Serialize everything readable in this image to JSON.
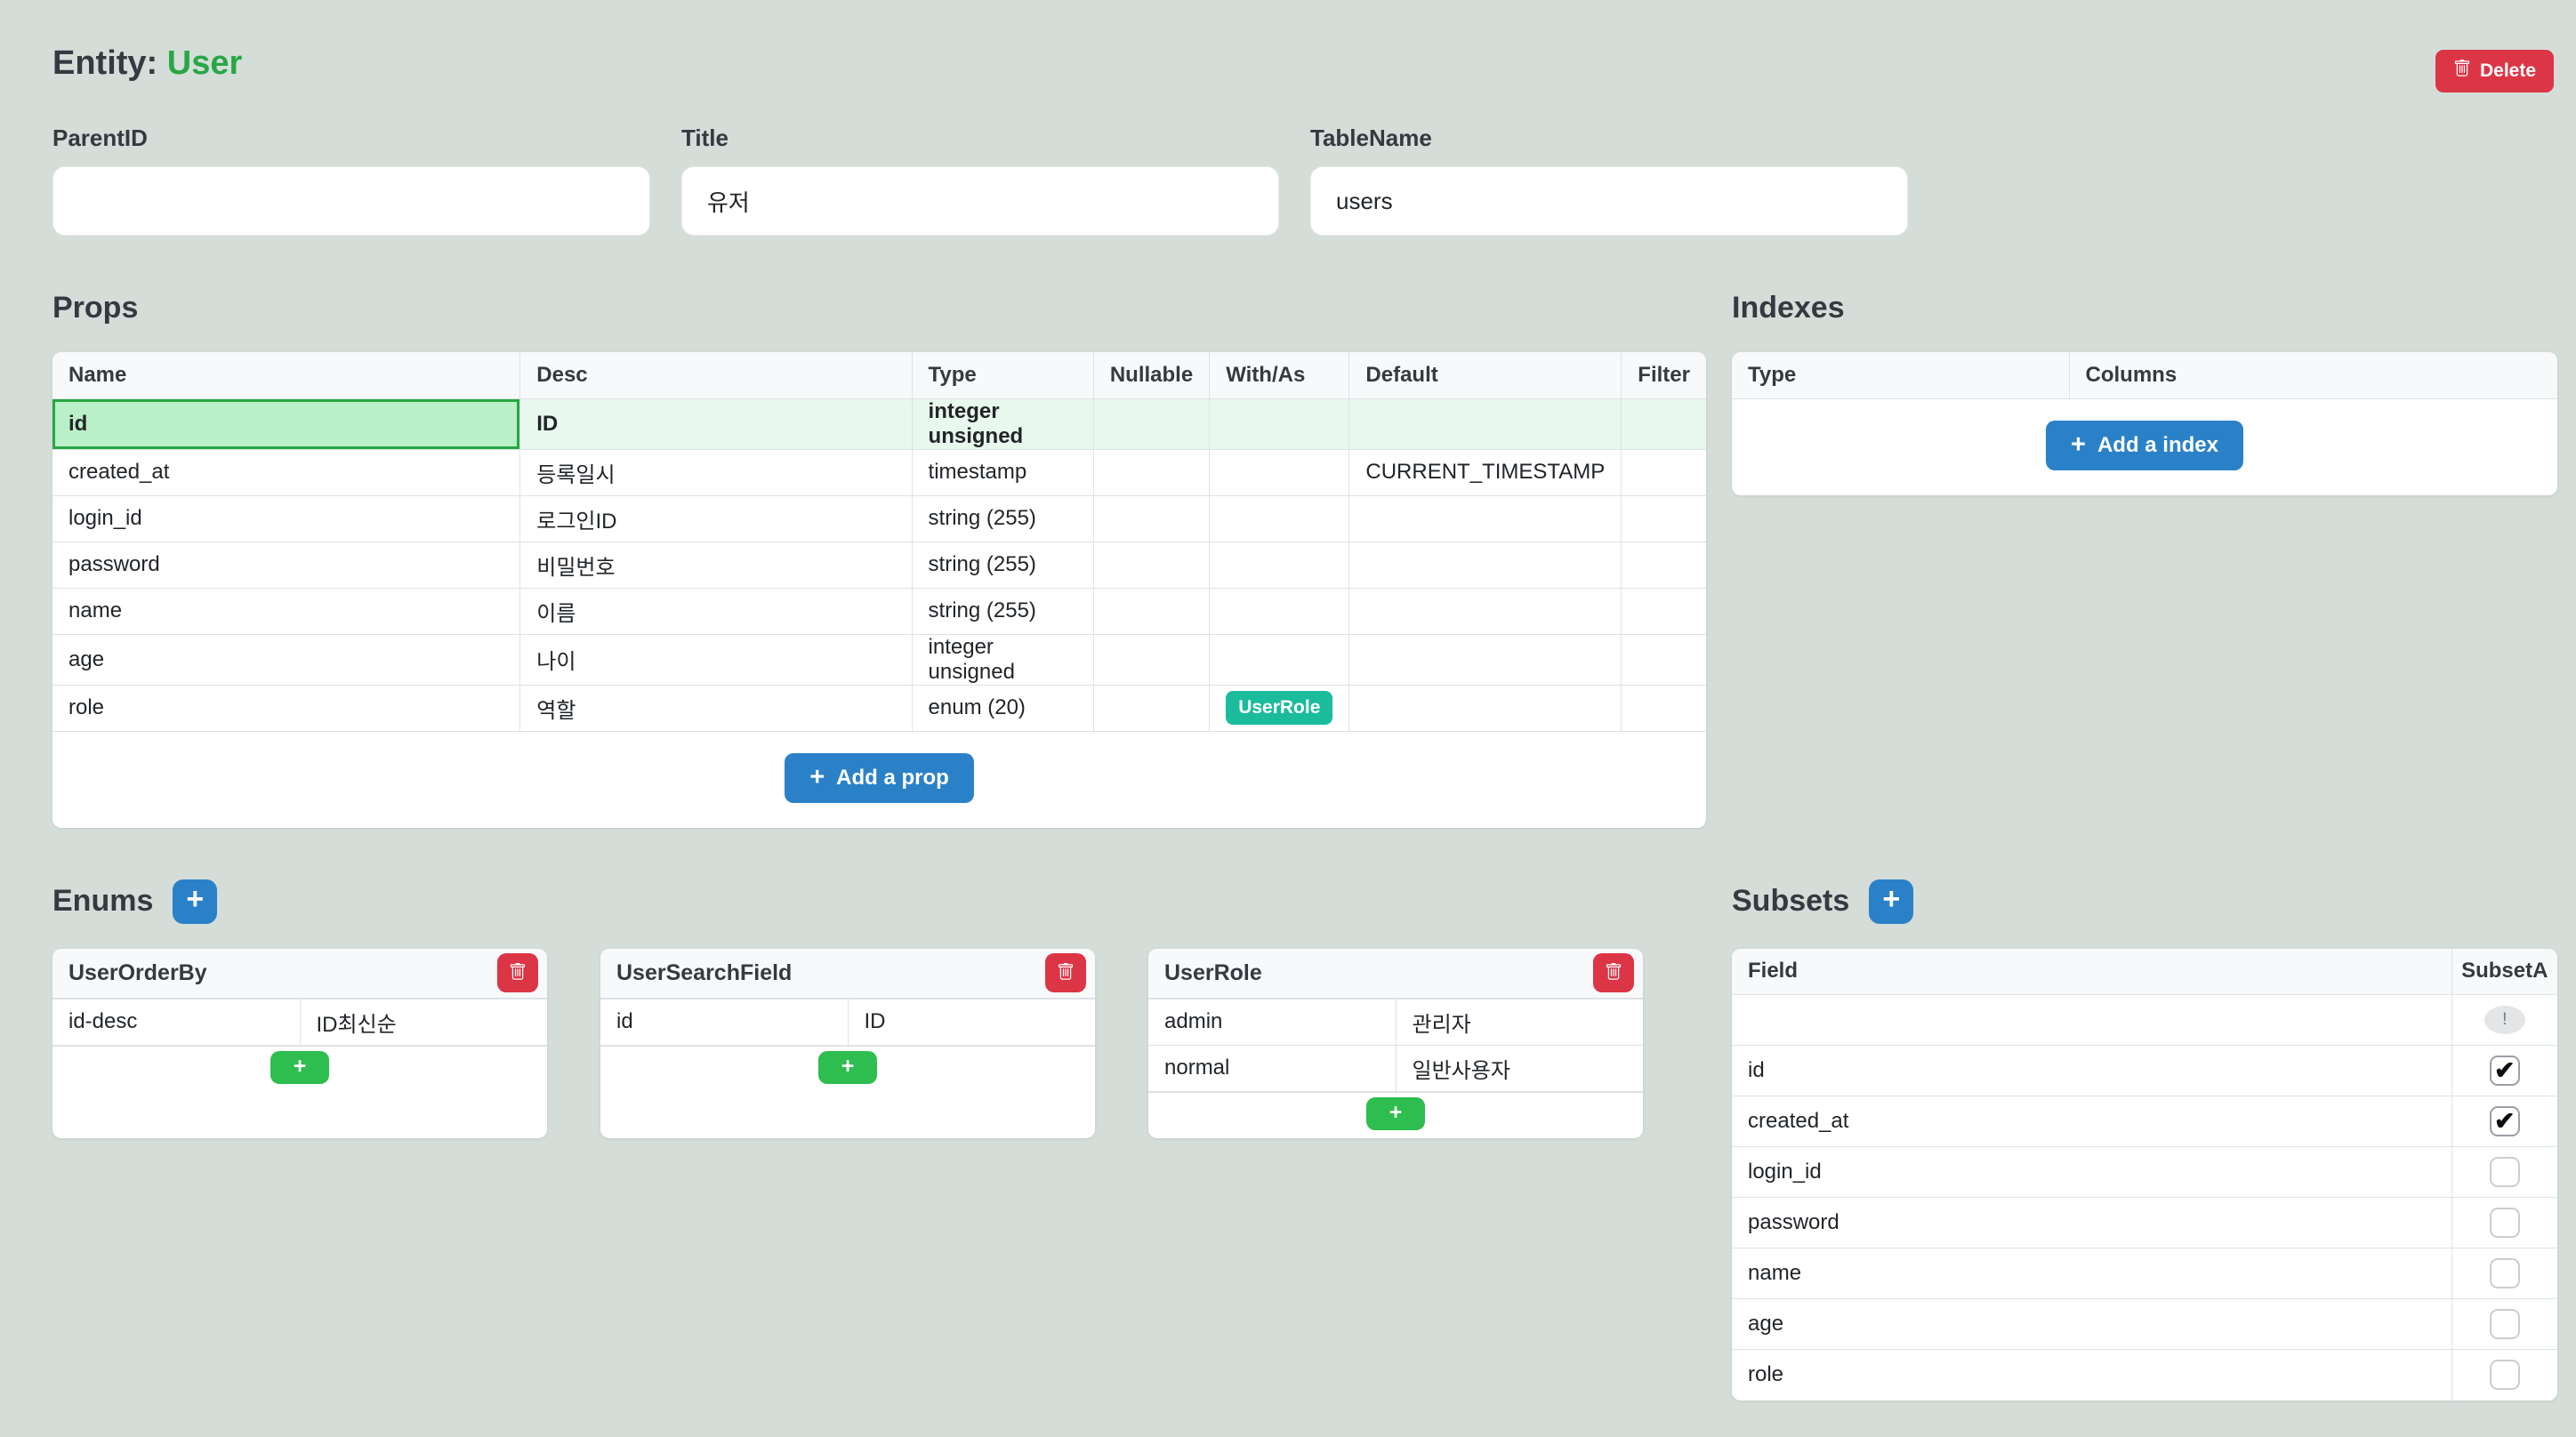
{
  "colors": {
    "blue": "#2b81c8",
    "green": "#28a745",
    "btn_green": "#2ebd4f",
    "red": "#dc3545",
    "teal": "#1abc9c",
    "background": "#d4ddd8",
    "highlight_cell": "#b9f0c7",
    "highlight_row": "#e9f8ef"
  },
  "icons": {
    "plus": "+",
    "check": "✔",
    "warning": "!"
  },
  "header": {
    "title_prefix": "Entity:",
    "entity_name": "User",
    "delete_label": "Delete"
  },
  "form": {
    "fields": [
      {
        "label": "ParentID",
        "value": "",
        "placeholder": ""
      },
      {
        "label": "Title",
        "value": "유저",
        "placeholder": ""
      },
      {
        "label": "TableName",
        "value": "users",
        "placeholder": ""
      }
    ]
  },
  "props": {
    "heading": "Props",
    "columns": [
      "Name",
      "Desc",
      "Type",
      "Nullable",
      "With/As",
      "Default",
      "Filter"
    ],
    "rows": [
      {
        "name": "id",
        "desc": "ID",
        "type": "integer unsigned",
        "nullable": "",
        "with_as": "",
        "with_as_badge": "",
        "default": "",
        "filter": "",
        "highlight": true
      },
      {
        "name": "created_at",
        "desc": "등록일시",
        "type": "timestamp",
        "nullable": "",
        "with_as": "",
        "with_as_badge": "",
        "default": "CURRENT_TIMESTAMP",
        "filter": "",
        "highlight": false
      },
      {
        "name": "login_id",
        "desc": "로그인ID",
        "type": "string (255)",
        "nullable": "",
        "with_as": "",
        "with_as_badge": "",
        "default": "",
        "filter": "",
        "highlight": false
      },
      {
        "name": "password",
        "desc": "비밀번호",
        "type": "string (255)",
        "nullable": "",
        "with_as": "",
        "with_as_badge": "",
        "default": "",
        "filter": "",
        "highlight": false
      },
      {
        "name": "name",
        "desc": "이름",
        "type": "string (255)",
        "nullable": "",
        "with_as": "",
        "with_as_badge": "",
        "default": "",
        "filter": "",
        "highlight": false
      },
      {
        "name": "age",
        "desc": "나이",
        "type": "integer unsigned",
        "nullable": "",
        "with_as": "",
        "with_as_badge": "",
        "default": "",
        "filter": "",
        "highlight": false
      },
      {
        "name": "role",
        "desc": "역할",
        "type": "enum (20)",
        "nullable": "",
        "with_as": "",
        "with_as_badge": "UserRole",
        "default": "",
        "filter": "",
        "highlight": false
      }
    ],
    "add_button": "Add a prop"
  },
  "indexes": {
    "heading": "Indexes",
    "columns": [
      "Type",
      "Columns"
    ],
    "add_button": "Add a index"
  },
  "enums": {
    "heading": "Enums",
    "cards": [
      {
        "title": "UserOrderBy",
        "rows": [
          [
            "id-desc",
            "ID최신순"
          ]
        ]
      },
      {
        "title": "UserSearchField",
        "rows": [
          [
            "id",
            "ID"
          ]
        ]
      },
      {
        "title": "UserRole",
        "rows": [
          [
            "admin",
            "관리자"
          ],
          [
            "normal",
            "일반사용자"
          ]
        ]
      }
    ]
  },
  "subsets": {
    "heading": "Subsets",
    "columns": [
      "Field",
      "SubsetA"
    ],
    "rows": [
      {
        "field": "",
        "control": "warning",
        "checked": false
      },
      {
        "field": "id",
        "control": "checkbox",
        "checked": true
      },
      {
        "field": "created_at",
        "control": "checkbox",
        "checked": true
      },
      {
        "field": "login_id",
        "control": "checkbox",
        "checked": false
      },
      {
        "field": "password",
        "control": "checkbox",
        "checked": false
      },
      {
        "field": "name",
        "control": "checkbox",
        "checked": false
      },
      {
        "field": "age",
        "control": "checkbox",
        "checked": false
      },
      {
        "field": "role",
        "control": "checkbox",
        "checked": false
      }
    ]
  }
}
